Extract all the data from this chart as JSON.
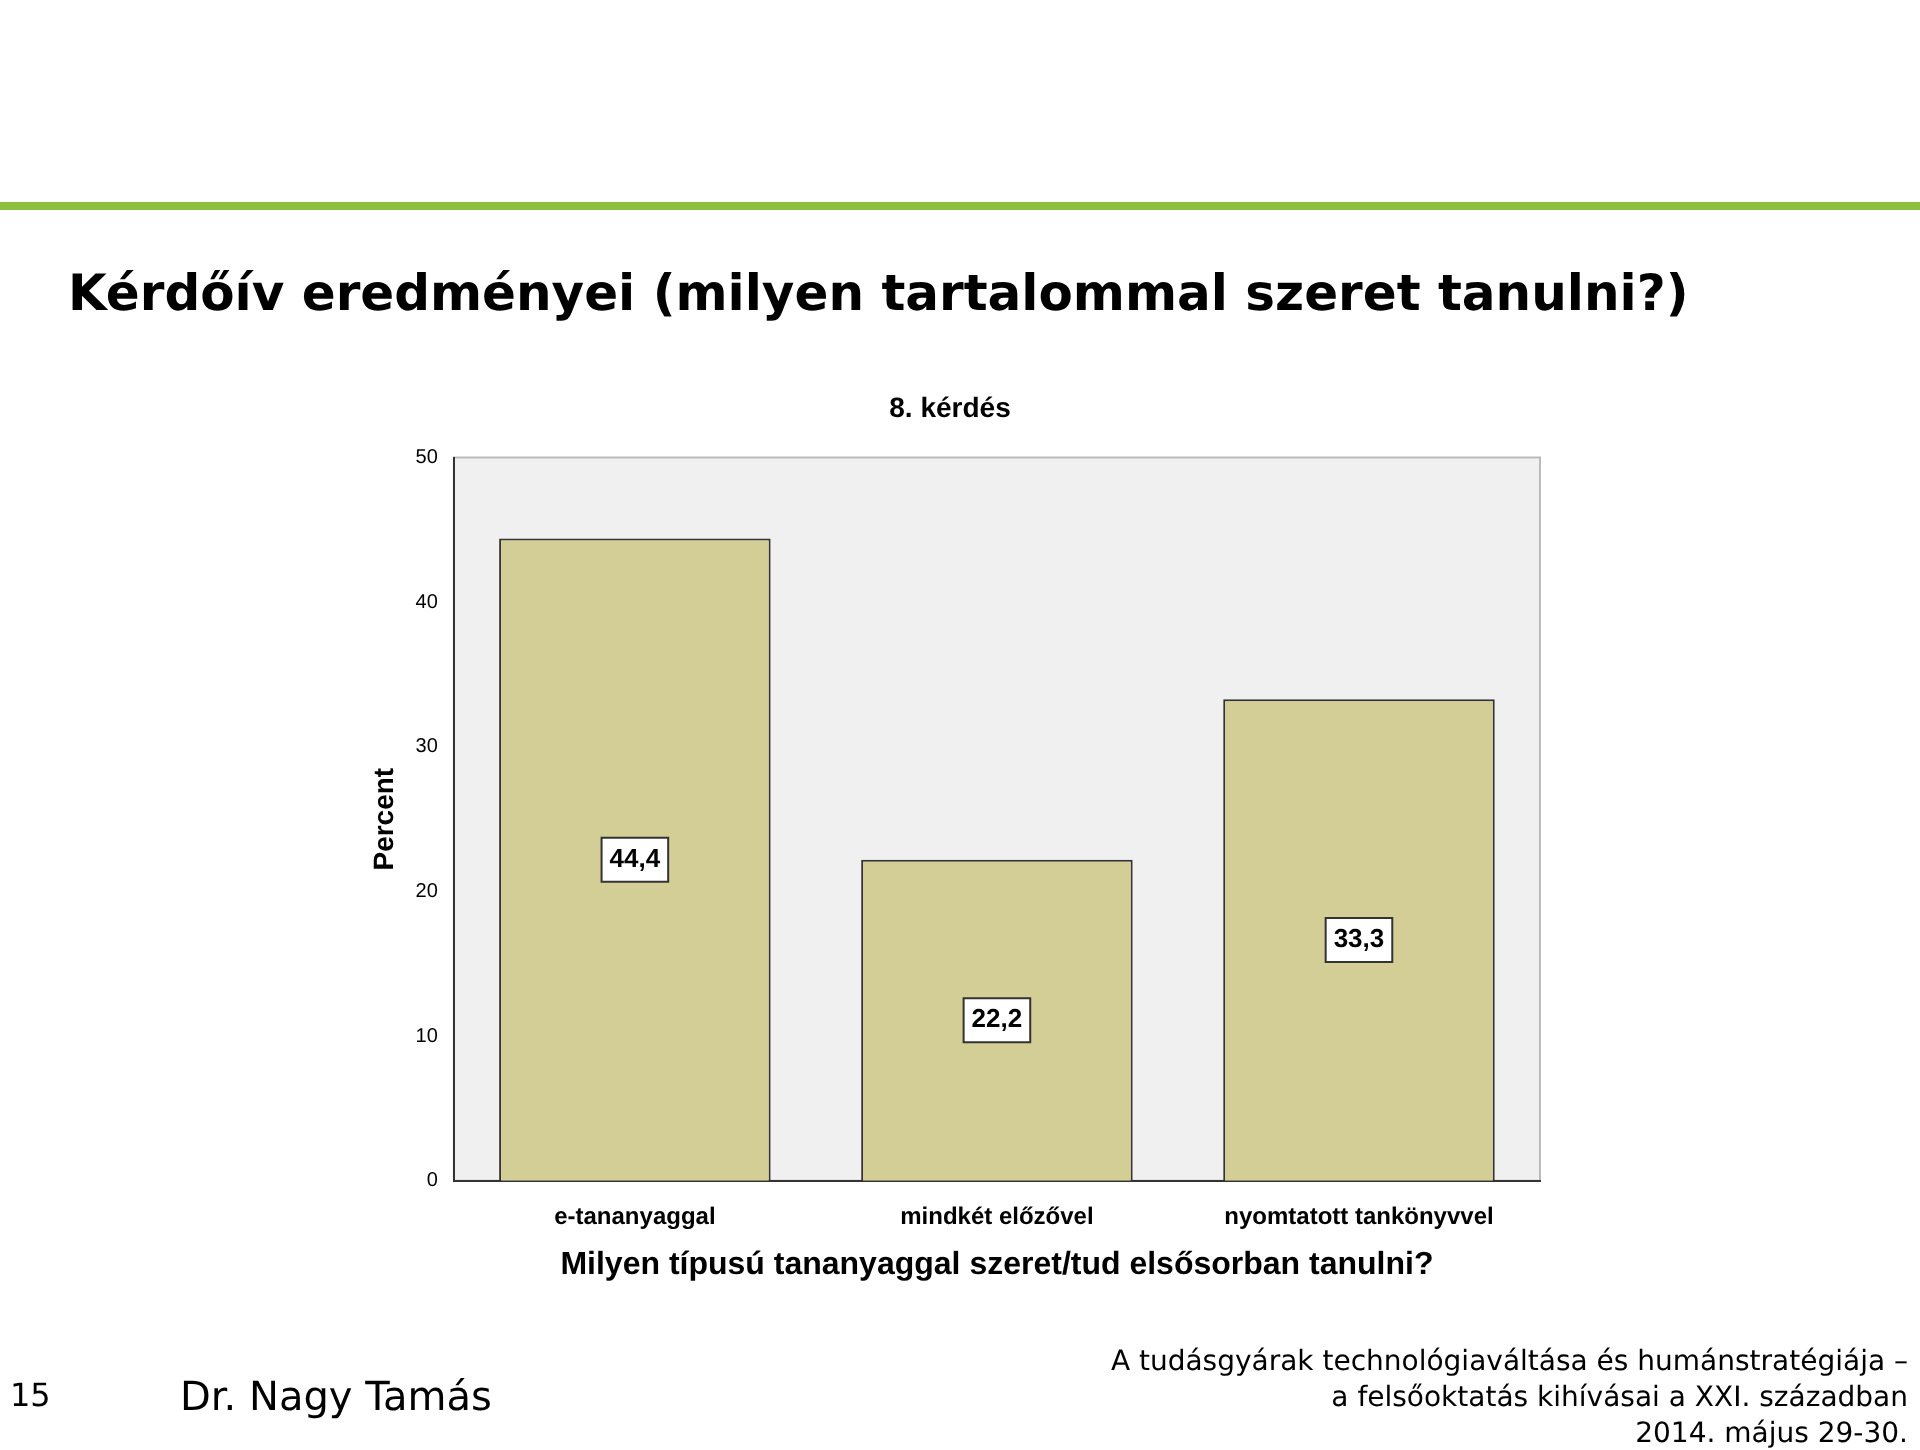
{
  "chart_data": {
    "type": "bar",
    "title": "8. kérdés",
    "xlabel": "Milyen típusú tananyaggal szeret/tud elsősorban tanulni?",
    "ylabel": "Percent",
    "categories": [
      "e-tananyaggal",
      "mindkét előzővel",
      "nyomtatott tankönyvvel"
    ],
    "values": [
      44.4,
      22.2,
      33.3
    ],
    "value_labels": [
      "44,4",
      "22,2",
      "33,3"
    ],
    "color": "#d3ce95",
    "ylim": [
      0,
      50
    ],
    "yticks": [
      0,
      10,
      20,
      30,
      40,
      50
    ],
    "grid": false,
    "legend": false,
    "annotations": [
      "Kérdőív eredményei (milyen tartalommal szeret tanulni?)",
      "15",
      "Dr. Nagy Tamás",
      "A tudásgyárak technológiaváltása és humánstratégiája –",
      "a felsőoktatás kihívásai a XXI. században",
      "2014. május 29-30."
    ]
  }
}
